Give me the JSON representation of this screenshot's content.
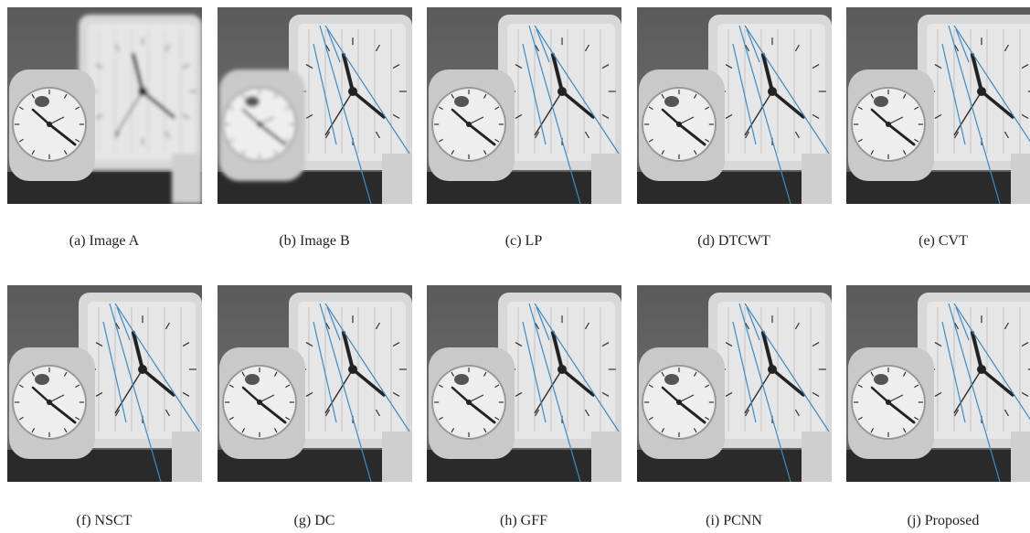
{
  "figure": {
    "panels": [
      {
        "caption": "(a) Image A"
      },
      {
        "caption": "(b) Image B"
      },
      {
        "caption": "(c) LP"
      },
      {
        "caption": "(d) DTCWT"
      },
      {
        "caption": "(e) CVT"
      },
      {
        "caption": "(f) NSCT"
      },
      {
        "caption": "(g) DC"
      },
      {
        "caption": "(h) GFF"
      },
      {
        "caption": "(i) PCNN"
      },
      {
        "caption": "(j) Proposed"
      }
    ]
  }
}
